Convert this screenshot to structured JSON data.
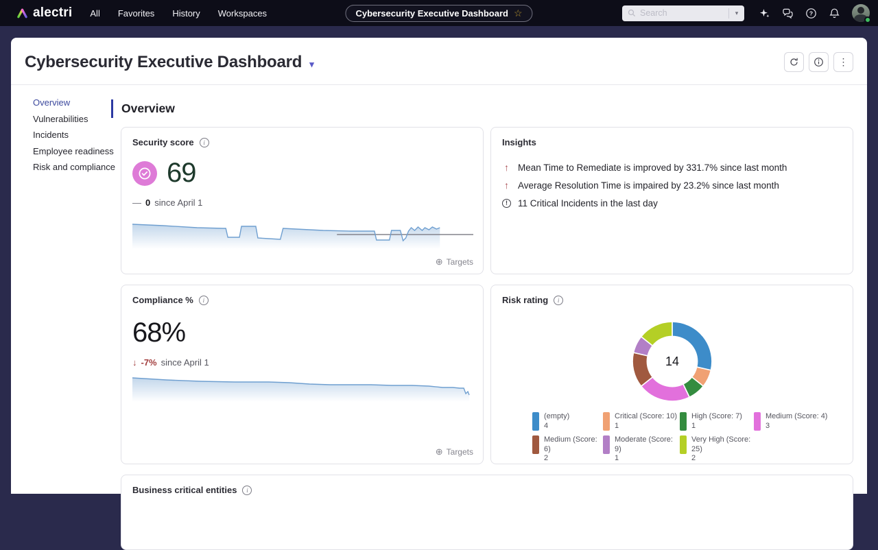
{
  "icons": {
    "caret": "▾",
    "kebab": "⋮",
    "targets": "⊕",
    "star": "☆"
  },
  "colors": {
    "topbar_bg": "#0d0d18",
    "page_bg": "#2a2a4c",
    "accent_indigo": "#3d4a9e",
    "badge_pink": "#de7bd7",
    "score_green": "#1e3a2c",
    "delta_negative_red": "#a33f3f",
    "insight_arrow_red": "#a8494f",
    "sparkline_blue": "#6f9fd0",
    "target_line_gray": "#84848c",
    "status_dot_green": "#3ebf5f"
  },
  "topbar": {
    "logo_text": "alectri",
    "nav": [
      "All",
      "Favorites",
      "History",
      "Workspaces"
    ],
    "pill_label": "Cybersecurity Executive Dashboard",
    "search_placeholder": "Search"
  },
  "header": {
    "title": "Cybersecurity Executive Dashboard"
  },
  "sidebar": {
    "items": [
      {
        "label": "Overview",
        "active": true
      },
      {
        "label": "Vulnerabilities",
        "active": false
      },
      {
        "label": "Incidents",
        "active": false
      },
      {
        "label": "Employee readiness",
        "active": false
      },
      {
        "label": "Risk and compliance",
        "active": false
      }
    ]
  },
  "section_title": "Overview",
  "cards": {
    "security_score": {
      "title": "Security score",
      "value": "69",
      "delta_symbol": "—",
      "delta_value": "0",
      "delta_suffix": "since April 1",
      "targets_label": "Targets"
    },
    "insights": {
      "title": "Insights",
      "items": [
        {
          "icon": "arrow-up-icon",
          "glyph": "↑",
          "text": "Mean Time to Remediate is improved by 331.7% since last month"
        },
        {
          "icon": "arrow-up-icon",
          "glyph": "↑",
          "text": "Average Resolution Time is impaired by 23.2% since last month"
        },
        {
          "icon": "alert-circle-icon",
          "glyph": "!",
          "text": "11 Critical Incidents in the last day"
        }
      ]
    },
    "compliance": {
      "title": "Compliance %",
      "value": "68%",
      "delta_symbol": "↓",
      "delta_value": "-7%",
      "delta_suffix": "since April 1",
      "targets_label": "Targets"
    },
    "risk_rating": {
      "title": "Risk rating"
    },
    "business_critical": {
      "title": "Business critical entities"
    }
  },
  "chart_data": [
    {
      "type": "line",
      "name": "security-score-trend",
      "title": "Security score over time",
      "x_range": [
        0,
        500
      ],
      "y_range": [
        0,
        46
      ],
      "line_color": "#6f9fd0",
      "points": [
        [
          0,
          10
        ],
        [
          45,
          12
        ],
        [
          95,
          15
        ],
        [
          133,
          16
        ],
        [
          137,
          16
        ],
        [
          140,
          29
        ],
        [
          157,
          29
        ],
        [
          160,
          13
        ],
        [
          181,
          13
        ],
        [
          184,
          30
        ],
        [
          200,
          31
        ],
        [
          217,
          32
        ],
        [
          221,
          16
        ],
        [
          240,
          17
        ],
        [
          280,
          19
        ],
        [
          320,
          20
        ],
        [
          355,
          20
        ],
        [
          358,
          33
        ],
        [
          377,
          33
        ],
        [
          380,
          19
        ],
        [
          393,
          19
        ],
        [
          397,
          34
        ],
        [
          401,
          30
        ],
        [
          405,
          20
        ],
        [
          409,
          15
        ],
        [
          414,
          19
        ],
        [
          419,
          14
        ],
        [
          425,
          19
        ],
        [
          429,
          15
        ],
        [
          435,
          18
        ],
        [
          440,
          14
        ],
        [
          446,
          17
        ],
        [
          451,
          15
        ]
      ],
      "target_line": {
        "from_x": 300,
        "to_x": 500,
        "y": 25
      }
    },
    {
      "type": "line",
      "name": "compliance-trend",
      "title": "Compliance % over time",
      "x_range": [
        0,
        500
      ],
      "y_range": [
        0,
        42
      ],
      "line_color": "#6f9fd0",
      "points": [
        [
          0,
          7
        ],
        [
          50,
          10
        ],
        [
          100,
          12
        ],
        [
          150,
          13
        ],
        [
          200,
          13
        ],
        [
          230,
          14
        ],
        [
          260,
          16
        ],
        [
          290,
          17
        ],
        [
          320,
          17
        ],
        [
          350,
          17
        ],
        [
          380,
          18
        ],
        [
          410,
          18
        ],
        [
          435,
          19
        ],
        [
          455,
          21
        ],
        [
          470,
          21
        ],
        [
          480,
          22
        ],
        [
          486,
          22
        ],
        [
          489,
          30
        ],
        [
          492,
          27
        ],
        [
          494,
          32
        ]
      ],
      "target_line": null
    },
    {
      "type": "pie",
      "name": "risk-rating-donut",
      "title": "Risk rating",
      "center_total": "14",
      "segments": [
        {
          "label": "(empty)",
          "value": 4,
          "color": "#3d8cc9"
        },
        {
          "label": "Critical (Score: 10)",
          "value": 1,
          "color": "#f0a173"
        },
        {
          "label": "High (Score: 7)",
          "value": 1,
          "color": "#348c3f"
        },
        {
          "label": "Medium (Score: 4)",
          "value": 3,
          "color": "#e270dc"
        },
        {
          "label": "Medium (Score: 6)",
          "value": 2,
          "color": "#a0593f"
        },
        {
          "label": "Moderate (Score: 9)",
          "value": 1,
          "color": "#b27fc6"
        },
        {
          "label": "Very High (Score: 25)",
          "value": 2,
          "color": "#b4cf26"
        }
      ]
    }
  ]
}
